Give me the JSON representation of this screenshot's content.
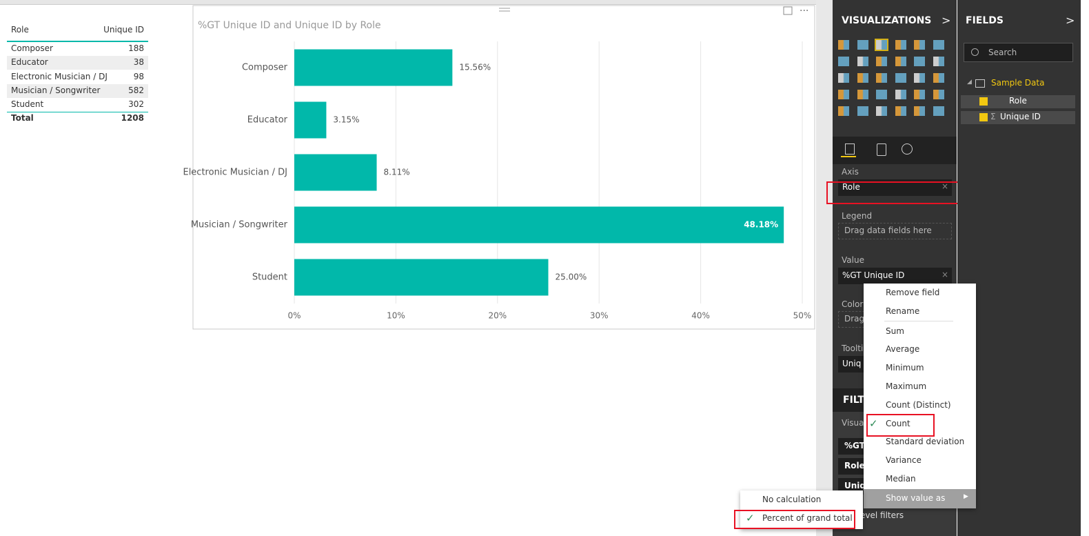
{
  "table": {
    "headers": [
      "Role",
      "Unique ID"
    ],
    "rows": [
      [
        "Composer",
        188
      ],
      [
        "Educator",
        38
      ],
      [
        "Electronic Musician / DJ",
        98
      ],
      [
        "Musician / Songwriter",
        582
      ],
      [
        "Student",
        302
      ]
    ],
    "total": [
      "Total",
      1208
    ]
  },
  "chart_data": {
    "type": "bar",
    "orientation": "horizontal",
    "title": "%GT Unique ID and Unique ID by Role",
    "categories": [
      "Composer",
      "Educator",
      "Electronic Musician / DJ",
      "Musician / Songwriter",
      "Student"
    ],
    "values": [
      15.56,
      3.15,
      8.11,
      48.18,
      25.0
    ],
    "value_labels": [
      "15.56%",
      "3.15%",
      "8.11%",
      "48.18%",
      "25.00%"
    ],
    "color": "#01b8aa",
    "xlim": [
      0,
      50
    ],
    "xticks": [
      {
        "value": 0,
        "label": "0%"
      },
      {
        "value": 10,
        "label": "10%"
      },
      {
        "value": 20,
        "label": "20%"
      },
      {
        "value": 30,
        "label": "30%"
      },
      {
        "value": 40,
        "label": "40%"
      },
      {
        "value": 50,
        "label": "50%"
      }
    ],
    "grid": true
  },
  "visualizations": {
    "title": "VISUALIZATIONS",
    "wells": [
      {
        "label": "Axis",
        "field": "Role"
      },
      {
        "label": "Legend",
        "placeholder": "Drag data fields here"
      },
      {
        "label": "Value",
        "field": "%GT Unique ID"
      },
      {
        "label": "Color",
        "placeholder": "Drag"
      },
      {
        "label": "Toolti",
        "field": "Uniq"
      }
    ]
  },
  "filters": {
    "title": "FILT",
    "section": "Visua",
    "items": [
      "%GT",
      "Role(",
      "Uniq"
    ],
    "footer": "evel filters"
  },
  "fields": {
    "title": "FIELDS",
    "search": "Search",
    "table": "Sample Data",
    "items": [
      "Role",
      "Unique ID"
    ]
  },
  "context_menu": {
    "items": [
      {
        "label": "Remove field"
      },
      {
        "label": "Rename"
      },
      {
        "label": "Sum"
      },
      {
        "label": "Average"
      },
      {
        "label": "Minimum"
      },
      {
        "label": "Maximum"
      },
      {
        "label": "Count (Distinct)"
      },
      {
        "label": "Count",
        "checked": true
      },
      {
        "label": "Standard deviation"
      },
      {
        "label": "Variance"
      },
      {
        "label": "Median"
      }
    ],
    "submenu_trigger": "Show value as",
    "submenu": [
      {
        "label": "No calculation"
      },
      {
        "label": "Percent of grand total",
        "checked": true
      }
    ]
  }
}
